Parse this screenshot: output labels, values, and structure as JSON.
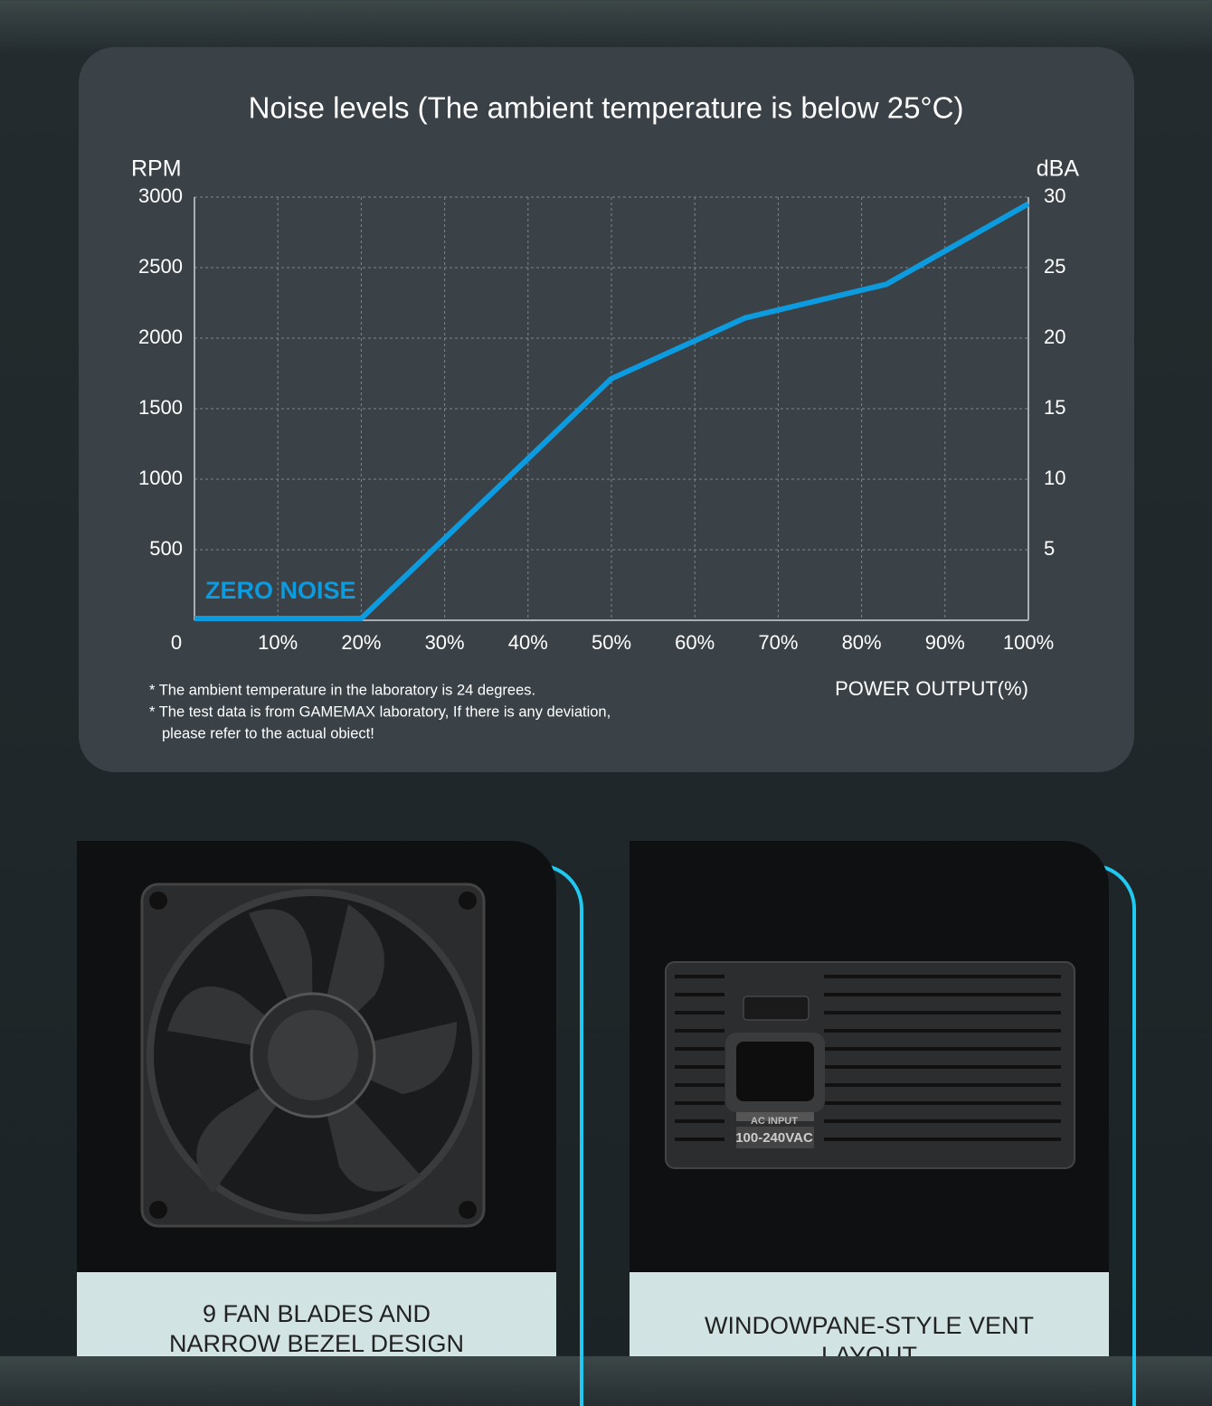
{
  "chart_data": {
    "type": "line",
    "title": "Noise levels (The ambient temperature is below 25°C)",
    "y_label": "RPM",
    "y2_label": "dBA",
    "x_label": "POWER OUTPUT(%)",
    "annotation": "ZERO NOISE",
    "notes": [
      "* The ambient temperature in the laboratory is 24 degrees.",
      "* The test data is from GAMEMAX laboratory, If there is any deviation,",
      "please refer to the actual obiect!"
    ],
    "x": [
      0,
      20,
      50,
      66,
      83,
      100
    ],
    "values": [
      0,
      0,
      1700,
      2130,
      2370,
      2940
    ],
    "color": "#0d9be0",
    "xlim": [
      0,
      100
    ],
    "xticks": [
      0,
      {
        "value": 10,
        "label": "10%"
      },
      {
        "value": 20,
        "label": "20%"
      },
      {
        "value": 30,
        "label": "30%"
      },
      {
        "value": 40,
        "label": "40%"
      },
      {
        "value": 50,
        "label": "50%"
      },
      {
        "value": 60,
        "label": "60%"
      },
      {
        "value": 70,
        "label": "70%"
      },
      {
        "value": 80,
        "label": "80%"
      },
      {
        "value": 90,
        "label": "90%"
      },
      {
        "value": 100,
        "label": "100%"
      }
    ],
    "ylim": [
      0,
      3000
    ],
    "yticks": [
      500,
      1000,
      1500,
      2000,
      2500,
      3000
    ],
    "y2lim": [
      0,
      30
    ],
    "y2ticks": [
      5,
      10,
      15,
      20,
      25,
      30
    ],
    "grid": true
  },
  "cards": [
    {
      "caption": [
        "9 FAN BLADES AND",
        "NARROW BEZEL DESIGN"
      ]
    },
    {
      "caption": [
        "WINDOWPANE-STYLE VENT",
        "LAYOUT"
      ],
      "image_labels": [
        "AC INPUT",
        "100-240VAC"
      ]
    }
  ]
}
